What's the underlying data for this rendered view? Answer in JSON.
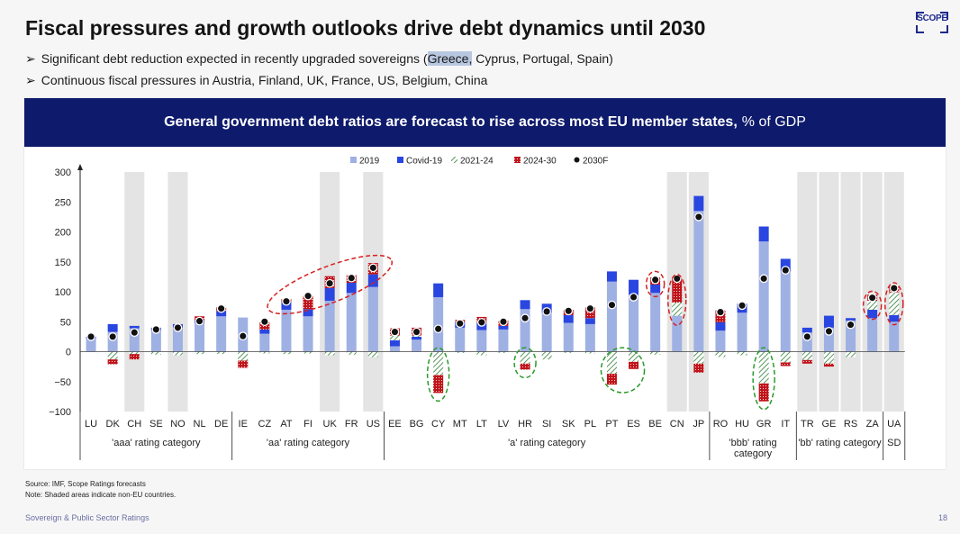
{
  "title": "Fiscal pressures and growth outlooks drive debt dynamics until 2030",
  "logo_text": "SCOPE",
  "bullets": [
    {
      "pre": "Significant debt reduction expected in recently upgraded sovereigns (",
      "hl": "Greece,",
      "post": " Cyprus, Portugal, Spain)"
    },
    {
      "pre": "Continuous fiscal pressures in Austria, Finland, UK, France, US, Belgium, China",
      "hl": "",
      "post": ""
    }
  ],
  "banner": {
    "bold": "General government debt ratios are forecast to rise across most EU member states,",
    "normal": "% of GDP"
  },
  "colors": {
    "y2019": "#9fb0e3",
    "covid": "#2a46e0",
    "hatch_green": "#2e7d32",
    "red": "#c0141b",
    "marker": "#111111",
    "shade": "#e4e4e4",
    "ellipse_red": "#d62020",
    "ellipse_green": "#2a9a2a"
  },
  "chart_data": {
    "type": "bar",
    "title": "General government debt ratios are forecast to rise across most EU member states, % of GDP",
    "ylim": [
      -100,
      300
    ],
    "yticks": [
      -100,
      -50,
      0,
      50,
      100,
      150,
      200,
      250,
      300
    ],
    "legend": [
      "2019",
      "Covid-19",
      "2021-24",
      "2024-30",
      "2030F"
    ],
    "legend_position": "top-center",
    "categories": [
      "LU",
      "DK",
      "CH",
      "SE",
      "NO",
      "NL",
      "DE",
      "IE",
      "CZ",
      "AT",
      "FI",
      "UK",
      "FR",
      "US",
      "EE",
      "BG",
      "CY",
      "MT",
      "LT",
      "LV",
      "HR",
      "SI",
      "SK",
      "PL",
      "PT",
      "ES",
      "BE",
      "CN",
      "JP",
      "RO",
      "HU",
      "GR",
      "IT",
      "TR",
      "GE",
      "RS",
      "ZA",
      "UA"
    ],
    "non_eu_shaded": [
      "CH",
      "NO",
      "UK",
      "US",
      "CN",
      "JP",
      "TR",
      "GE",
      "RS",
      "ZA",
      "UA"
    ],
    "groups": [
      {
        "label": "'aaa' rating category",
        "from": "LU",
        "to": "DE"
      },
      {
        "label": "'aa' rating category",
        "from": "IE",
        "to": "US"
      },
      {
        "label": "'a' rating category",
        "from": "EE",
        "to": "JP"
      },
      {
        "label": "'bbb' rating category",
        "from": "RO",
        "to": "IT"
      },
      {
        "label": "'bb' rating category",
        "from": "TR",
        "to": "ZA"
      },
      {
        "label": "SD",
        "from": "UA",
        "to": "UA"
      }
    ],
    "series": [
      {
        "name": "2019",
        "values": [
          22,
          33,
          39,
          35,
          40,
          48,
          59,
          57,
          30,
          70,
          59,
          85,
          98,
          108,
          9,
          20,
          91,
          40,
          36,
          37,
          71,
          65,
          48,
          46,
          117,
          95,
          98,
          60,
          235,
          35,
          65,
          184,
          134,
          32,
          40,
          52,
          56,
          50
        ]
      },
      {
        "name": "Covid-19",
        "values": [
          3,
          13,
          4,
          5,
          6,
          4,
          9,
          0,
          7,
          13,
          12,
          21,
          17,
          21,
          10,
          5,
          23,
          10,
          12,
          6,
          15,
          15,
          13,
          10,
          17,
          25,
          14,
          0,
          25,
          14,
          15,
          25,
          21,
          8,
          20,
          4,
          14,
          11
        ]
      },
      {
        "name": "2021-24",
        "values": [
          0,
          -13,
          -4,
          -5,
          -6,
          -4,
          -4,
          -15,
          -3,
          -4,
          -3,
          -6,
          -5,
          -9,
          8,
          2,
          -39,
          -2,
          -6,
          -2,
          -20,
          -13,
          -2,
          -3,
          -37,
          -17,
          -5,
          22,
          -20,
          -9,
          -6,
          -53,
          -18,
          -14,
          -20,
          -9,
          15,
          38
        ]
      },
      {
        "name": "2024-30",
        "values": [
          0,
          -8,
          -9,
          0,
          0,
          7,
          6,
          -12,
          12,
          5,
          22,
          20,
          13,
          19,
          12,
          13,
          -30,
          3,
          10,
          9,
          -10,
          0,
          9,
          18,
          -18,
          -12,
          12,
          41,
          -15,
          20,
          0,
          -30,
          -6,
          -6,
          -5,
          0,
          10,
          10
        ]
      },
      {
        "name": "2030F",
        "values": [
          25,
          25,
          32,
          37,
          40,
          51,
          72,
          26,
          50,
          84,
          93,
          114,
          123,
          140,
          33,
          33,
          38,
          47,
          49,
          50,
          56,
          67,
          68,
          72,
          78,
          91,
          120,
          122,
          225,
          66,
          77,
          122,
          136,
          25,
          34,
          45,
          90,
          106
        ]
      }
    ],
    "annotations": {
      "red_ellipses": [
        [
          "AT",
          "US"
        ],
        [
          "BE"
        ],
        [
          "CN"
        ],
        [
          "ZA"
        ],
        [
          "UA"
        ]
      ],
      "green_ellipses": [
        [
          "CY"
        ],
        [
          "HR"
        ],
        [
          "PT",
          "ES"
        ],
        [
          "GR"
        ]
      ]
    }
  },
  "footnotes": [
    "Source: IMF, Scope Ratings forecasts",
    "Note: Shaded areas indicate non-EU countries."
  ],
  "footer": "Sovereign & Public Sector Ratings",
  "page_number": "18"
}
